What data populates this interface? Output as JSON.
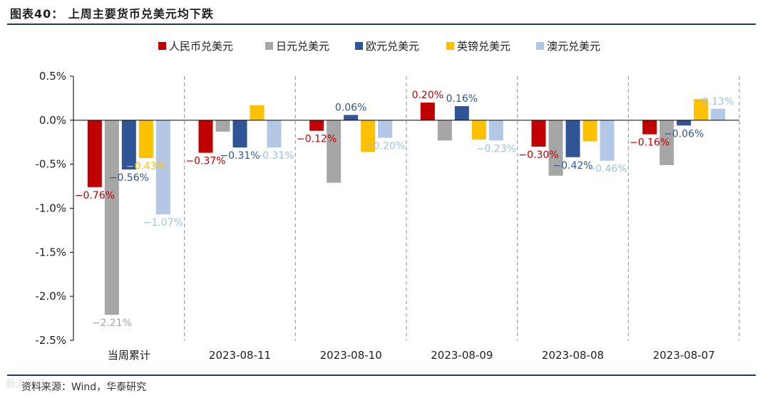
{
  "figure": {
    "title": "图表40： 上周主要货币兑美元均下跌",
    "source": "资料来源：Wind，华泰研究",
    "watermark": "新浪财经"
  },
  "colors": {
    "rule": "#1f3864",
    "text": "#333333",
    "axis": "#000000",
    "divider": "#a6a6a6"
  },
  "chart_data": {
    "type": "bar",
    "title": "",
    "xlabel": "",
    "ylabel": "",
    "ylim": [
      -2.5,
      0.5
    ],
    "yticks": [
      0.5,
      0.0,
      -0.5,
      -1.0,
      -1.5,
      -2.0,
      -2.5
    ],
    "ytick_labels": [
      "0.5%",
      "0.0%",
      "-0.5%",
      "-1.0%",
      "-1.5%",
      "-2.0%",
      "-2.5%"
    ],
    "legend_position": "top-center",
    "grid": false,
    "categories": [
      "当周累计",
      "2023-08-11",
      "2023-08-10",
      "2023-08-09",
      "2023-08-08",
      "2023-08-07"
    ],
    "series": [
      {
        "name": "人民币兑美元",
        "color": "#c00000",
        "label_color": "#c00000",
        "values": [
          -0.76,
          -0.37,
          -0.12,
          0.2,
          -0.3,
          -0.16
        ],
        "labels": [
          "−0.76%",
          "−0.37%",
          "−0.12%",
          "0.20%",
          "−0.30%",
          "−0.16%"
        ]
      },
      {
        "name": "日元兑美元",
        "color": "#a6a6a6",
        "label_color": "#a6a6a6",
        "values": [
          -2.21,
          -0.13,
          -0.71,
          -0.23,
          -0.63,
          -0.51
        ],
        "labels": [
          "−2.21%",
          "",
          "",
          "",
          "",
          ""
        ]
      },
      {
        "name": "欧元兑美元",
        "color": "#2f5597",
        "label_color": "#2f5597",
        "values": [
          -0.56,
          -0.31,
          0.06,
          0.16,
          -0.42,
          -0.06
        ],
        "labels": [
          "−0.56%",
          "−0.31%",
          "0.06%",
          "0.16%",
          "−0.42%",
          "−0.06%"
        ]
      },
      {
        "name": "英镑兑美元",
        "color": "#ffc000",
        "label_color": "#ffc000",
        "values": [
          -0.43,
          0.17,
          -0.36,
          -0.22,
          -0.24,
          0.24
        ],
        "labels": [
          "−0.43%",
          "",
          "",
          "",
          "",
          ""
        ]
      },
      {
        "name": "澳元兑美元",
        "color": "#b4c7e7",
        "label_color": "#9dc3e6",
        "values": [
          -1.07,
          -0.31,
          -0.2,
          -0.23,
          -0.46,
          0.13
        ],
        "labels": [
          "−1.07%",
          "−0.31%",
          "−0.20%",
          "−0.23%",
          "−0.46%",
          "0.13%"
        ]
      }
    ]
  }
}
